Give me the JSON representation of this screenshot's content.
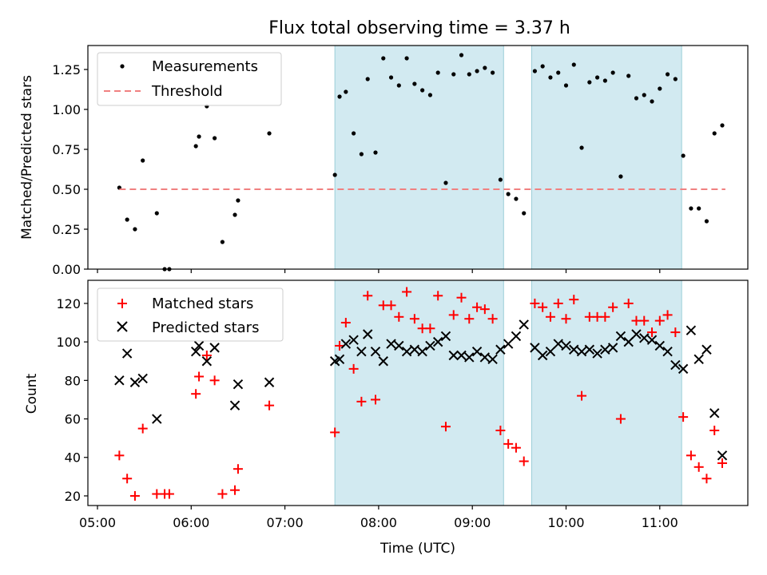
{
  "chart_data": {
    "type": "scatter",
    "title": "Flux total observing time = 3.37 h",
    "x_unit": "time of day (UTC)",
    "xlabel": "Time (UTC)",
    "xlim": [
      "05:00",
      "12:00"
    ],
    "x_ticks": [
      "05:00",
      "06:00",
      "07:00",
      "08:00",
      "09:00",
      "10:00",
      "11:00"
    ],
    "highlight_spans": [
      [
        "07:32",
        "09:20"
      ],
      [
        "09:38",
        "11:14"
      ]
    ],
    "highlight_color": "#add8e6",
    "panels": [
      {
        "ylabel": "Matched/Predicted stars",
        "ylim": [
          0,
          1.4
        ],
        "y_ticks": [
          "0.00",
          "0.25",
          "0.50",
          "0.75",
          "1.00",
          "1.25"
        ],
        "legend": "top-left",
        "series": [
          {
            "name": "Measurements",
            "marker": "dot",
            "color": "#000000",
            "points": [
              [
                "05:14",
                0.51
              ],
              [
                "05:19",
                0.31
              ],
              [
                "05:24",
                0.25
              ],
              [
                "05:29",
                0.68
              ],
              [
                "05:38",
                0.35
              ],
              [
                "05:43",
                0.0
              ],
              [
                "05:46",
                0.0
              ],
              [
                "06:03",
                0.77
              ],
              [
                "06:05",
                0.83
              ],
              [
                "06:10",
                1.02
              ],
              [
                "06:15",
                0.82
              ],
              [
                "06:20",
                0.17
              ],
              [
                "06:28",
                0.34
              ],
              [
                "06:30",
                0.43
              ],
              [
                "06:50",
                0.85
              ],
              [
                "07:32",
                0.59
              ],
              [
                "07:35",
                1.08
              ],
              [
                "07:39",
                1.11
              ],
              [
                "07:44",
                0.85
              ],
              [
                "07:49",
                0.72
              ],
              [
                "07:53",
                1.19
              ],
              [
                "07:58",
                0.73
              ],
              [
                "08:03",
                1.32
              ],
              [
                "08:08",
                1.2
              ],
              [
                "08:13",
                1.15
              ],
              [
                "08:18",
                1.32
              ],
              [
                "08:23",
                1.16
              ],
              [
                "08:28",
                1.12
              ],
              [
                "08:33",
                1.09
              ],
              [
                "08:38",
                1.23
              ],
              [
                "08:43",
                0.54
              ],
              [
                "08:48",
                1.22
              ],
              [
                "08:53",
                1.34
              ],
              [
                "08:58",
                1.22
              ],
              [
                "09:03",
                1.24
              ],
              [
                "09:08",
                1.26
              ],
              [
                "09:13",
                1.23
              ],
              [
                "09:18",
                0.56
              ],
              [
                "09:23",
                0.47
              ],
              [
                "09:28",
                0.44
              ],
              [
                "09:33",
                0.35
              ],
              [
                "09:40",
                1.24
              ],
              [
                "09:45",
                1.27
              ],
              [
                "09:50",
                1.2
              ],
              [
                "09:55",
                1.23
              ],
              [
                "10:00",
                1.15
              ],
              [
                "10:05",
                1.28
              ],
              [
                "10:10",
                0.76
              ],
              [
                "10:15",
                1.17
              ],
              [
                "10:20",
                1.2
              ],
              [
                "10:25",
                1.18
              ],
              [
                "10:30",
                1.23
              ],
              [
                "10:35",
                0.58
              ],
              [
                "10:40",
                1.21
              ],
              [
                "10:45",
                1.07
              ],
              [
                "10:50",
                1.09
              ],
              [
                "10:55",
                1.05
              ],
              [
                "11:00",
                1.13
              ],
              [
                "11:05",
                1.22
              ],
              [
                "11:10",
                1.19
              ],
              [
                "11:15",
                0.71
              ],
              [
                "11:20",
                0.38
              ],
              [
                "11:25",
                0.38
              ],
              [
                "11:30",
                0.3
              ],
              [
                "11:35",
                0.85
              ],
              [
                "11:40",
                0.9
              ]
            ]
          },
          {
            "name": "Threshold",
            "marker": "dashed-line",
            "color": "#f08080",
            "points": [
              [
                "05:14",
                0.5
              ],
              [
                "11:42",
                0.5
              ]
            ]
          }
        ]
      },
      {
        "ylabel": "Count",
        "ylim": [
          15,
          132
        ],
        "y_ticks": [
          "20",
          "40",
          "60",
          "80",
          "100",
          "120"
        ],
        "legend": "top-left",
        "series": [
          {
            "name": "Matched stars",
            "marker": "plus",
            "color": "#ff0000",
            "points": [
              [
                "05:14",
                41
              ],
              [
                "05:19",
                29
              ],
              [
                "05:24",
                20
              ],
              [
                "05:29",
                55
              ],
              [
                "05:38",
                21
              ],
              [
                "05:43",
                21
              ],
              [
                "05:46",
                21
              ],
              [
                "06:03",
                73
              ],
              [
                "06:05",
                82
              ],
              [
                "06:10",
                93
              ],
              [
                "06:15",
                80
              ],
              [
                "06:20",
                21
              ],
              [
                "06:28",
                23
              ],
              [
                "06:30",
                34
              ],
              [
                "06:50",
                67
              ],
              [
                "07:32",
                53
              ],
              [
                "07:35",
                98
              ],
              [
                "07:39",
                110
              ],
              [
                "07:44",
                86
              ],
              [
                "07:49",
                69
              ],
              [
                "07:53",
                124
              ],
              [
                "07:58",
                70
              ],
              [
                "08:03",
                119
              ],
              [
                "08:08",
                119
              ],
              [
                "08:13",
                113
              ],
              [
                "08:18",
                126
              ],
              [
                "08:23",
                112
              ],
              [
                "08:28",
                107
              ],
              [
                "08:33",
                107
              ],
              [
                "08:38",
                124
              ],
              [
                "08:43",
                56
              ],
              [
                "08:48",
                114
              ],
              [
                "08:53",
                123
              ],
              [
                "08:58",
                112
              ],
              [
                "09:03",
                118
              ],
              [
                "09:08",
                117
              ],
              [
                "09:13",
                112
              ],
              [
                "09:18",
                54
              ],
              [
                "09:23",
                47
              ],
              [
                "09:28",
                45
              ],
              [
                "09:33",
                38
              ],
              [
                "09:40",
                120
              ],
              [
                "09:45",
                118
              ],
              [
                "09:50",
                113
              ],
              [
                "09:55",
                120
              ],
              [
                "10:00",
                112
              ],
              [
                "10:05",
                122
              ],
              [
                "10:10",
                72
              ],
              [
                "10:15",
                113
              ],
              [
                "10:20",
                113
              ],
              [
                "10:25",
                113
              ],
              [
                "10:30",
                118
              ],
              [
                "10:35",
                60
              ],
              [
                "10:40",
                120
              ],
              [
                "10:45",
                111
              ],
              [
                "10:50",
                111
              ],
              [
                "10:55",
                105
              ],
              [
                "11:00",
                111
              ],
              [
                "11:05",
                114
              ],
              [
                "11:10",
                105
              ],
              [
                "11:15",
                61
              ],
              [
                "11:20",
                41
              ],
              [
                "11:25",
                35
              ],
              [
                "11:30",
                29
              ],
              [
                "11:35",
                54
              ],
              [
                "11:40",
                37
              ]
            ]
          },
          {
            "name": "Predicted stars",
            "marker": "x",
            "color": "#000000",
            "points": [
              [
                "05:14",
                80
              ],
              [
                "05:19",
                94
              ],
              [
                "05:24",
                79
              ],
              [
                "05:29",
                81
              ],
              [
                "05:38",
                60
              ],
              [
                "06:03",
                95
              ],
              [
                "06:05",
                98
              ],
              [
                "06:10",
                90
              ],
              [
                "06:15",
                97
              ],
              [
                "06:28",
                67
              ],
              [
                "06:30",
                78
              ],
              [
                "06:50",
                79
              ],
              [
                "07:32",
                90
              ],
              [
                "07:35",
                91
              ],
              [
                "07:39",
                99
              ],
              [
                "07:44",
                101
              ],
              [
                "07:49",
                95
              ],
              [
                "07:53",
                104
              ],
              [
                "07:58",
                95
              ],
              [
                "08:03",
                90
              ],
              [
                "08:08",
                99
              ],
              [
                "08:13",
                98
              ],
              [
                "08:18",
                95
              ],
              [
                "08:23",
                96
              ],
              [
                "08:28",
                95
              ],
              [
                "08:33",
                98
              ],
              [
                "08:38",
                100
              ],
              [
                "08:43",
                103
              ],
              [
                "08:48",
                93
              ],
              [
                "08:53",
                93
              ],
              [
                "08:58",
                92
              ],
              [
                "09:03",
                95
              ],
              [
                "09:08",
                92
              ],
              [
                "09:13",
                91
              ],
              [
                "09:18",
                96
              ],
              [
                "09:23",
                99
              ],
              [
                "09:28",
                103
              ],
              [
                "09:33",
                109
              ],
              [
                "09:40",
                97
              ],
              [
                "09:45",
                93
              ],
              [
                "09:50",
                95
              ],
              [
                "09:55",
                99
              ],
              [
                "10:00",
                98
              ],
              [
                "10:05",
                96
              ],
              [
                "10:10",
                95
              ],
              [
                "10:15",
                96
              ],
              [
                "10:20",
                94
              ],
              [
                "10:25",
                96
              ],
              [
                "10:30",
                97
              ],
              [
                "10:35",
                103
              ],
              [
                "10:40",
                100
              ],
              [
                "10:45",
                104
              ],
              [
                "10:50",
                102
              ],
              [
                "10:55",
                101
              ],
              [
                "11:00",
                98
              ],
              [
                "11:05",
                95
              ],
              [
                "11:10",
                88
              ],
              [
                "11:15",
                86
              ],
              [
                "11:20",
                106
              ],
              [
                "11:25",
                91
              ],
              [
                "11:30",
                96
              ],
              [
                "11:35",
                63
              ],
              [
                "11:40",
                41
              ]
            ]
          }
        ]
      }
    ]
  }
}
